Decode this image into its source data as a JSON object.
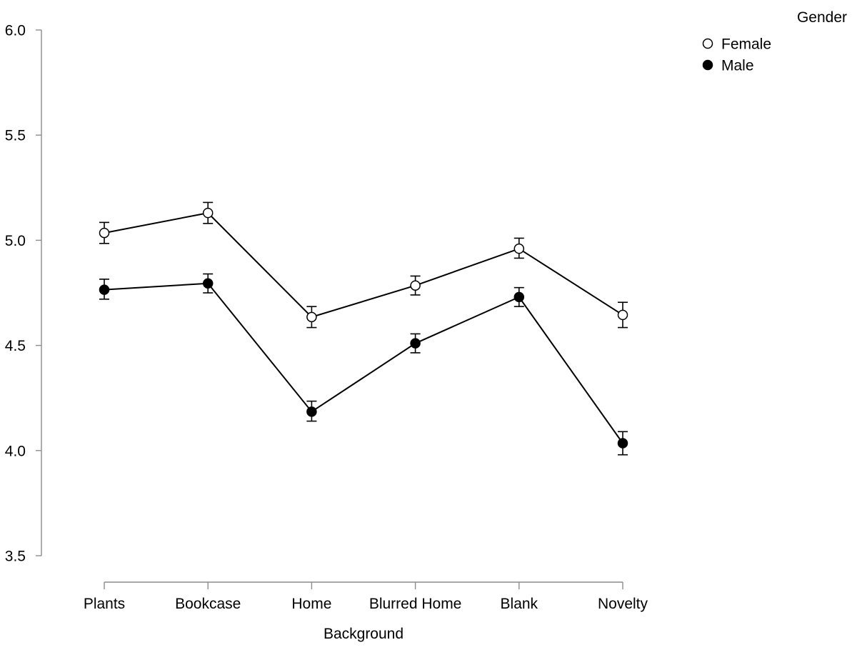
{
  "chart_data": {
    "type": "line",
    "xlabel": "Background",
    "ylabel": "",
    "categories": [
      "Plants",
      "Bookcase",
      "Home",
      "Blurred Home",
      "Blank",
      "Novelty"
    ],
    "ylim": [
      3.5,
      6.0
    ],
    "yticks": [
      3.5,
      4.0,
      4.5,
      5.0,
      5.5,
      6.0
    ],
    "ytick_labels": [
      "3.5",
      "4.0",
      "4.5",
      "5.0",
      "5.5",
      "6.0"
    ],
    "legend": {
      "title": "Gender",
      "position": "top-right"
    },
    "series": [
      {
        "name": "Female",
        "marker": "open-circle",
        "values": [
          5.035,
          5.13,
          4.635,
          4.785,
          4.96,
          4.645
        ],
        "error_low": [
          4.985,
          5.08,
          4.585,
          4.74,
          4.915,
          4.585
        ],
        "error_high": [
          5.085,
          5.18,
          4.685,
          4.83,
          5.01,
          4.705
        ]
      },
      {
        "name": "Male",
        "marker": "filled-circle",
        "values": [
          4.765,
          4.795,
          4.185,
          4.51,
          4.73,
          4.035
        ],
        "error_low": [
          4.72,
          4.75,
          4.14,
          4.465,
          4.685,
          3.98
        ],
        "error_high": [
          4.815,
          4.84,
          4.235,
          4.555,
          4.775,
          4.09
        ]
      }
    ],
    "grid": false,
    "colors": {
      "line": "#000000",
      "axis": "#8c8c8c",
      "open_fill": "#ffffff",
      "filled": "#000000"
    }
  }
}
